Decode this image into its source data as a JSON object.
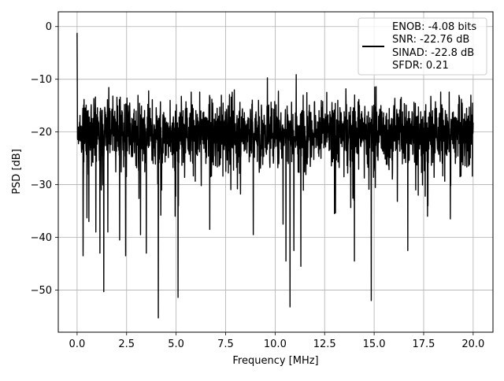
{
  "chart_data": {
    "type": "line",
    "xlabel": "Frequency [MHz]",
    "ylabel": "PSD [dB]",
    "xlim": [
      -0.95,
      21.0
    ],
    "ylim": [
      -58.0,
      2.8
    ],
    "xticks": [
      0.0,
      2.5,
      5.0,
      7.5,
      10.0,
      12.5,
      15.0,
      17.5,
      20.0
    ],
    "xtick_labels": [
      "0.0",
      "2.5",
      "5.0",
      "7.5",
      "10.0",
      "12.5",
      "15.0",
      "17.5",
      "20.0"
    ],
    "yticks": [
      0,
      -10,
      -20,
      -30,
      -40,
      -50
    ],
    "ytick_labels": [
      "0",
      "−10",
      "−20",
      "−30",
      "−40",
      "−50"
    ],
    "grid": true,
    "legend_position": "upper right",
    "legend_entries": [
      "ENOB: -4.08 bits",
      "SNR: -22.76 dB",
      "SINAD: -22.8 dB",
      "SFDR: 0.21"
    ],
    "series": [
      {
        "name": "ENOB: -4.08 bits\nSNR: -22.76 dB\nSINAD: -22.8 dB\nSFDR: 0.21",
        "color": "#000000",
        "style": "dense noise trace",
        "x_range": [
          0.0,
          20.0
        ],
        "n_points": 2049,
        "y_peak": -1.2,
        "y_peak_at": 0.0,
        "y_floor_median": -20.0,
        "y_floor_band": [
          -30.0,
          -10.0
        ],
        "notable_dips": [
          {
            "x": 0.3,
            "y": -43.5
          },
          {
            "x": 0.6,
            "y": -37.0
          },
          {
            "x": 0.95,
            "y": -39.0
          },
          {
            "x": 1.15,
            "y": -43.0
          },
          {
            "x": 1.35,
            "y": -50.3
          },
          {
            "x": 1.55,
            "y": -39.0
          },
          {
            "x": 2.15,
            "y": -40.5
          },
          {
            "x": 2.45,
            "y": -43.5
          },
          {
            "x": 3.2,
            "y": -39.5
          },
          {
            "x": 3.5,
            "y": -43.0
          },
          {
            "x": 4.1,
            "y": -55.3
          },
          {
            "x": 4.95,
            "y": -36.0
          },
          {
            "x": 5.1,
            "y": -51.4
          },
          {
            "x": 6.7,
            "y": -38.5
          },
          {
            "x": 8.9,
            "y": -39.5
          },
          {
            "x": 10.4,
            "y": -37.5
          },
          {
            "x": 10.55,
            "y": -44.5
          },
          {
            "x": 10.75,
            "y": -53.2
          },
          {
            "x": 10.95,
            "y": -42.5
          },
          {
            "x": 11.3,
            "y": -45.5
          },
          {
            "x": 13.0,
            "y": -35.5
          },
          {
            "x": 14.0,
            "y": -44.5
          },
          {
            "x": 14.85,
            "y": -52.0
          },
          {
            "x": 16.7,
            "y": -42.5
          },
          {
            "x": 17.7,
            "y": -36.0
          },
          {
            "x": 18.85,
            "y": -36.5
          }
        ],
        "seed": 7
      }
    ]
  }
}
